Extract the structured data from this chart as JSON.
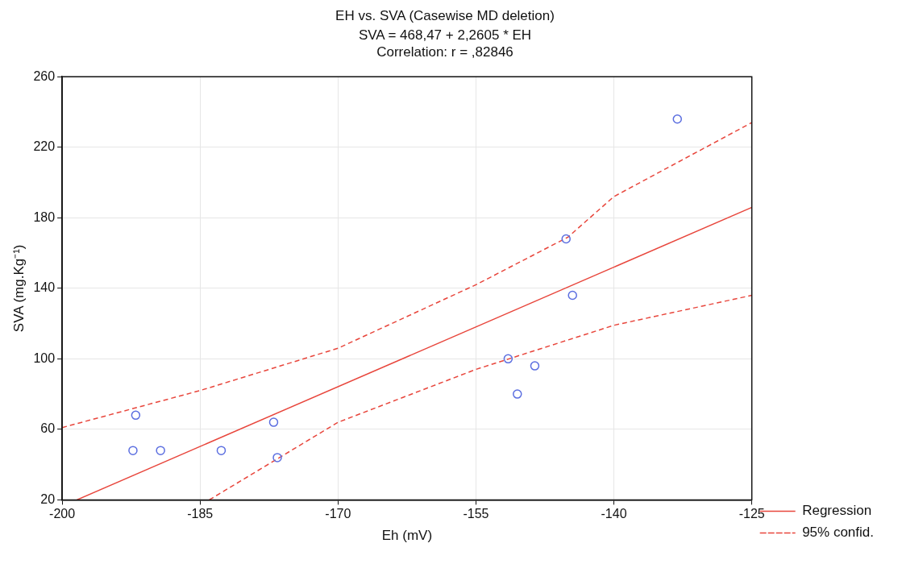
{
  "chart_data": {
    "type": "scatter",
    "title": "EH vs. SVA (Casewise MD deletion)",
    "subtitle": "SVA = 468,47 + 2,2605 * EH",
    "annotations": [
      "Correlation: r = ,82846"
    ],
    "xlabel": "Eh (mV)",
    "ylabel": "SVA (mg.Kg⁻¹)",
    "xlim": [
      -200,
      -125
    ],
    "xticks": [
      -200,
      -185,
      -170,
      -155,
      -140,
      -125
    ],
    "ylim": [
      20,
      260
    ],
    "yticks": [
      20,
      60,
      100,
      140,
      180,
      220,
      260
    ],
    "grid": true,
    "legend": "bottom right",
    "series": [
      {
        "marker": "circle",
        "color": "#5b6ee0",
        "x": [
          -192.0,
          -192.3,
          -189.3,
          -182.7,
          -177.0,
          -176.6,
          -151.5,
          -150.5,
          -148.6,
          -145.2,
          -144.5,
          -133.1
        ],
        "values": [
          68,
          48,
          48,
          48,
          64,
          44,
          100,
          80,
          96,
          168,
          136,
          236
        ]
      },
      {
        "type": "line",
        "name": "Regression",
        "color": "#e8463c",
        "line_style": "solid",
        "marker": "none",
        "x": [
          -198.4,
          -125
        ],
        "values": [
          20,
          185.9
        ]
      },
      {
        "type": "line",
        "name": "95% confid.",
        "color": "#e8463c",
        "line_style": "dashed",
        "marker": "none",
        "x": [
          -200,
          -185,
          -170,
          -155,
          -145,
          -140,
          -125
        ],
        "values": [
          61,
          82,
          106,
          142,
          169,
          192,
          234
        ]
      },
      {
        "type": "line",
        "color": "#e8463c",
        "line_style": "dashed",
        "marker": "none",
        "x": [
          -184,
          -170,
          -155,
          -140,
          -125
        ],
        "values": [
          20,
          64,
          94,
          119,
          136
        ]
      }
    ]
  }
}
